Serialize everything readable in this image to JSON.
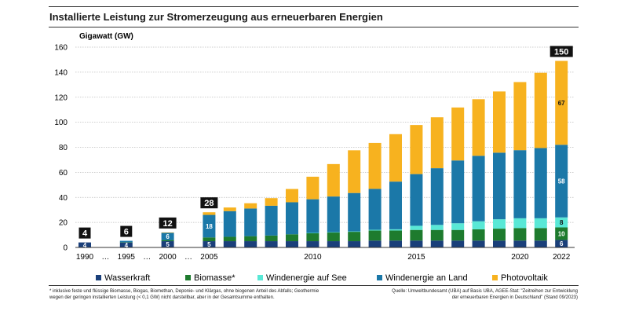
{
  "title": "Installierte Leistung zur Stromerzeugung aus erneuerbaren Energien",
  "footnote": {
    "line1": "* inklusive feste und flüssige Biomasse, Biogas, Biomethan, Deponie- und Klärgas, ohne biogenen Anteil des Abfalls; Geothermie",
    "line2": "wegen der geringen installierten Leistung (< 0,1 GW) nicht darstellbar, aber in der Gesamtsumme enthalten."
  },
  "source": {
    "line1": "Quelle: Umweltbundesamt (UBA) auf Basis UBA, AGEE-Stat: \"Zeitreihen zur Entwicklung",
    "line2": "der erneuerbaren Energien in Deutschland\" (Stand 09/2023)"
  },
  "colors": {
    "wasserkraft": "#1a3f7a",
    "biomasse": "#1e7b2e",
    "see": "#59e8d6",
    "land": "#1b78a8",
    "pv": "#f7b21f",
    "label_box": "#111111"
  },
  "chart_data": {
    "type": "bar",
    "stacked": true,
    "ylabel": "Gigawatt (GW)",
    "ylim": [
      0,
      160
    ],
    "yticks": [
      0,
      20,
      40,
      60,
      80,
      100,
      120,
      140,
      160
    ],
    "grid": true,
    "legend_position": "bottom",
    "categories": [
      "1990",
      "…",
      "1995",
      "…",
      "2000",
      "…",
      "2005",
      "2006",
      "2007",
      "2008",
      "2009",
      "2010",
      "2011",
      "2012",
      "2013",
      "2014",
      "2015",
      "2016",
      "2017",
      "2018",
      "2019",
      "2020",
      "2021",
      "2022"
    ],
    "tick_labels": [
      "1990",
      "…",
      "1995",
      "…",
      "2000",
      "…",
      "2005",
      "",
      "",
      "",
      "",
      "2010",
      "",
      "",
      "",
      "",
      "2015",
      "",
      "",
      "",
      "",
      "2020",
      "",
      "2022"
    ],
    "series": [
      {
        "name": "Wasserkraft",
        "key": "wasserkraft",
        "values": [
          4,
          null,
          4,
          null,
          5,
          null,
          5,
          5,
          5,
          5,
          5,
          5,
          5,
          5,
          5.5,
          5.5,
          5.5,
          5.5,
          5.5,
          5.5,
          5.5,
          5.5,
          5.5,
          6
        ]
      },
      {
        "name": "Biomasse*",
        "key": "biomasse",
        "values": [
          0,
          null,
          0.2,
          null,
          0.9,
          null,
          3,
          3.5,
          4,
          4.5,
          5.5,
          6.5,
          7,
          7.5,
          8,
          8,
          8.5,
          8.5,
          8.5,
          9,
          9.5,
          10,
          10,
          10
        ]
      },
      {
        "name": "Windenergie auf See",
        "key": "see",
        "values": [
          0,
          null,
          0,
          null,
          0,
          null,
          0,
          0,
          0,
          0,
          0,
          0.1,
          0.2,
          0.3,
          0.6,
          1,
          3.3,
          4,
          5.3,
          6.4,
          7.5,
          7.8,
          7.8,
          8
        ]
      },
      {
        "name": "Windenergie an Land",
        "key": "land",
        "values": [
          0,
          null,
          1.1,
          null,
          6,
          null,
          18,
          20.5,
          22.1,
          23.8,
          25.6,
          26.9,
          28.5,
          30.7,
          32.7,
          38.1,
          41.3,
          45.3,
          50.2,
          52.3,
          53.2,
          54.4,
          56.1,
          58
        ]
      },
      {
        "name": "Photovoltaik",
        "key": "pv",
        "values": [
          0,
          null,
          0,
          null,
          0.1,
          null,
          2.1,
          2.9,
          4.2,
          6.1,
          10.6,
          18,
          25.9,
          34.1,
          36.7,
          37.9,
          39.2,
          40.7,
          42.3,
          45.2,
          48.9,
          54.4,
          60.1,
          67
        ]
      }
    ],
    "segment_labels": [
      {
        "category": "2005",
        "series": "wasserkraft",
        "text": "5"
      },
      {
        "category": "2005",
        "series": "land",
        "text": "18"
      },
      {
        "category": "2022",
        "series": "wasserkraft",
        "text": "6"
      },
      {
        "category": "2022",
        "series": "biomasse",
        "text": "10"
      },
      {
        "category": "2022",
        "series": "see",
        "text": "8"
      },
      {
        "category": "2022",
        "series": "land",
        "text": "58"
      },
      {
        "category": "2022",
        "series": "pv",
        "text": "67"
      },
      {
        "category": "1990",
        "series": "wasserkraft",
        "text": "4"
      },
      {
        "category": "1995",
        "series": "wasserkraft",
        "text": "4"
      },
      {
        "category": "2000",
        "series": "wasserkraft",
        "text": "5"
      },
      {
        "category": "2000",
        "series": "land",
        "text": "6"
      }
    ],
    "total_labels": [
      {
        "category": "1990",
        "text": "4"
      },
      {
        "category": "1995",
        "text": "6"
      },
      {
        "category": "2000",
        "text": "12"
      },
      {
        "category": "2005",
        "text": "28"
      },
      {
        "category": "2022",
        "text": "150"
      }
    ]
  }
}
